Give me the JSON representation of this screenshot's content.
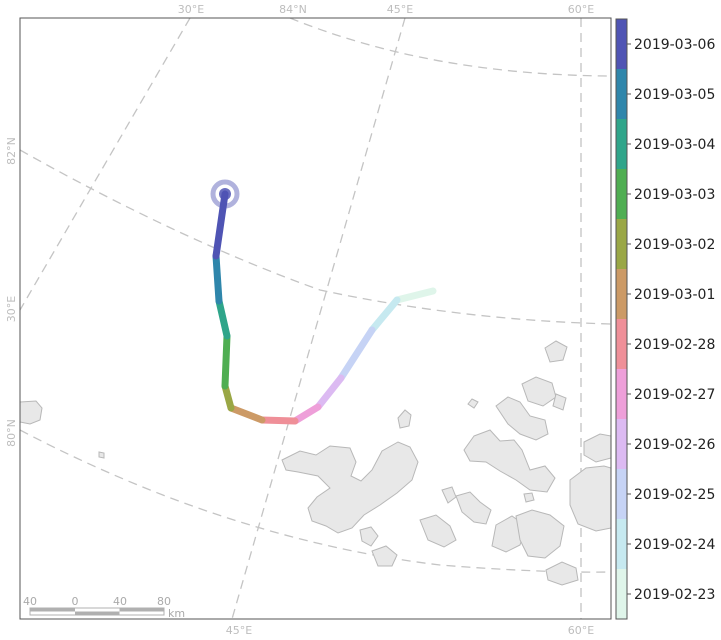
{
  "map": {
    "graticule_labels": {
      "top": [
        "30°E",
        "84°N",
        "45°E",
        "60°E"
      ],
      "left": [
        "82°N",
        "30°E",
        "80°N"
      ],
      "bottom": [
        "45°E",
        "60°E"
      ]
    },
    "scale_bar": {
      "ticks": [
        "40",
        "0",
        "40",
        "80"
      ],
      "unit": "km"
    },
    "track": {
      "dates": [
        "2019-02-23",
        "2019-02-24",
        "2019-02-25",
        "2019-02-26",
        "2019-02-27",
        "2019-02-28",
        "2019-03-01",
        "2019-03-02",
        "2019-03-03",
        "2019-03-04",
        "2019-03-05",
        "2019-03-06"
      ],
      "colors": [
        "#dff5ea",
        "#c6e9f0",
        "#c6d3f5",
        "#dcbaf2",
        "#ee9fd9",
        "#ef8f98",
        "#cc9a66",
        "#9aa745",
        "#4fae52",
        "#2fa58a",
        "#2f86ab",
        "#4f54b4"
      ],
      "end_marker_color": "#4f54b4"
    },
    "land_color": "#e8e8e8"
  },
  "colorbar": {
    "labels": [
      "2019-03-06",
      "2019-03-05",
      "2019-03-04",
      "2019-03-03",
      "2019-03-02",
      "2019-03-01",
      "2019-02-28",
      "2019-02-27",
      "2019-02-26",
      "2019-02-25",
      "2019-02-24",
      "2019-02-23"
    ],
    "colors": [
      "#4f54b4",
      "#2f86ab",
      "#2fa58a",
      "#4fae52",
      "#9aa745",
      "#cc9a66",
      "#ef8f98",
      "#ee9fd9",
      "#dcbaf2",
      "#c6d3f5",
      "#c6e9f0",
      "#dff5ea"
    ]
  }
}
